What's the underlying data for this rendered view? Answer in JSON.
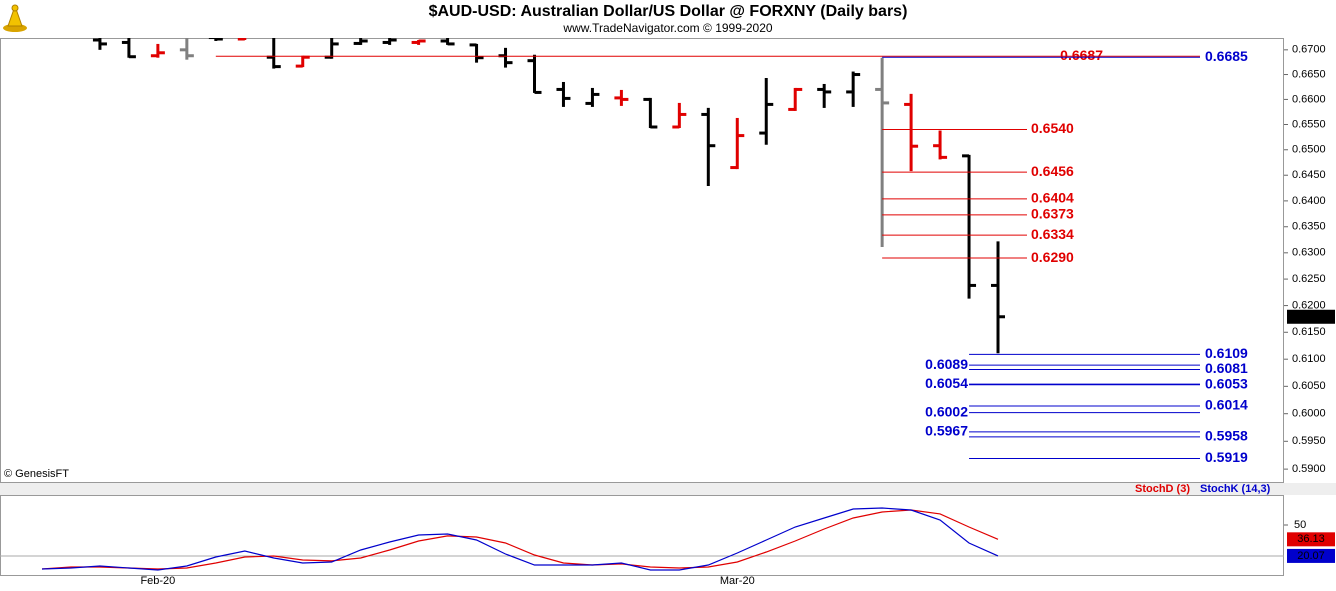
{
  "chart_data": [
    {
      "type": "ohlc",
      "title": "$AUD-USD:  Australian Dollar/US Dollar @ FORXNY  (Daily bars)",
      "subtitle": "www.TradeNavigator.com © 1999-2020",
      "source": "© GenesisFT",
      "categories": [
        null,
        null,
        null,
        null,
        "Feb-20",
        null,
        null,
        null,
        null,
        null,
        null,
        null,
        null,
        null,
        null,
        null,
        null,
        null,
        null,
        null,
        null,
        null,
        null,
        null,
        "Mar-20",
        null,
        null,
        null,
        null,
        null,
        null,
        null,
        null,
        null
      ],
      "open": [
        null,
        null,
        0.672,
        0.6715,
        0.6688,
        0.67,
        0.6725,
        0.6722,
        0.6685,
        0.6667,
        0.6685,
        0.6713,
        0.6715,
        0.6715,
        0.6718,
        0.671,
        0.6688,
        0.6678,
        0.662,
        0.6592,
        0.6603,
        0.66,
        0.6545,
        0.657,
        0.6465,
        0.6533,
        0.658,
        0.662,
        0.6615,
        0.662,
        0.659,
        0.6508,
        0.6488,
        0.6238
      ],
      "high": [
        null,
        null,
        0.6735,
        0.673,
        0.6712,
        0.6725,
        0.674,
        0.674,
        0.673,
        0.6688,
        0.6728,
        0.6728,
        0.673,
        0.672,
        0.6728,
        0.6712,
        0.6704,
        0.669,
        0.6635,
        0.6623,
        0.6619,
        0.6603,
        0.6593,
        0.6583,
        0.6563,
        0.6643,
        0.6623,
        0.6631,
        0.6656,
        0.6684,
        0.6611,
        0.6538,
        0.649,
        0.6322
      ],
      "low": [
        null,
        null,
        0.67,
        0.6684,
        0.6684,
        0.668,
        0.6718,
        0.672,
        0.6662,
        0.6665,
        0.6682,
        0.671,
        0.671,
        0.671,
        0.671,
        0.6674,
        0.6664,
        0.6613,
        0.6585,
        0.6585,
        0.6587,
        0.6543,
        0.6543,
        0.6429,
        0.6462,
        0.651,
        0.6577,
        0.6583,
        0.6585,
        0.6311,
        0.6458,
        0.6481,
        0.6213,
        0.6111
      ],
      "close": [
        null,
        null,
        0.6712,
        0.6686,
        0.6694,
        0.6688,
        0.6722,
        0.6728,
        0.6666,
        0.6685,
        0.6712,
        0.6718,
        0.672,
        0.6718,
        0.6712,
        0.6684,
        0.6674,
        0.6614,
        0.6602,
        0.661,
        0.66,
        0.6545,
        0.657,
        0.6508,
        0.6528,
        0.659,
        0.662,
        0.6615,
        0.665,
        0.6593,
        0.6507,
        0.6485,
        0.6238,
        0.6179
      ],
      "bar_colors": [
        null,
        null,
        "#000000",
        "#000000",
        "#e00000",
        "#808080",
        "#000000",
        "#e00000",
        "#000000",
        "#e00000",
        "#000000",
        "#000000",
        "#000000",
        "#e00000",
        "#000000",
        "#000000",
        "#000000",
        "#000000",
        "#000000",
        "#000000",
        "#e00000",
        "#000000",
        "#e00000",
        "#000000",
        "#e00000",
        "#000000",
        "#e00000",
        "#000000",
        "#000000",
        "#808080",
        "#e00000",
        "#e00000",
        "#000000",
        "#000000"
      ],
      "log_scale": true,
      "ylim": [
        0.5877,
        0.672
      ],
      "yticks": [
        {
          "value": 0.67,
          "label": "0.6700"
        },
        {
          "value": 0.665,
          "label": "0.6650"
        },
        {
          "value": 0.66,
          "label": "0.6600"
        },
        {
          "value": 0.655,
          "label": "0.6550"
        },
        {
          "value": 0.65,
          "label": "0.6500"
        },
        {
          "value": 0.645,
          "label": "0.6450"
        },
        {
          "value": 0.64,
          "label": "0.6400"
        },
        {
          "value": 0.635,
          "label": "0.6350"
        },
        {
          "value": 0.63,
          "label": "0.6300"
        },
        {
          "value": 0.625,
          "label": "0.6250"
        },
        {
          "value": 0.62,
          "label": "0.6200"
        },
        {
          "value": 0.615,
          "label": "0.6150"
        },
        {
          "value": 0.61,
          "label": "0.6100"
        },
        {
          "value": 0.605,
          "label": "0.6050"
        },
        {
          "value": 0.6,
          "label": "0.6000"
        },
        {
          "value": 0.595,
          "label": "0.5950"
        },
        {
          "value": 0.59,
          "label": "0.5900"
        }
      ],
      "levels": {
        "long_red": {
          "color": "#e00000",
          "values": [
            0.6687
          ],
          "value_labels": [
            "0.6687"
          ]
        },
        "top_blue": {
          "color": "#0000cc",
          "values": [
            0.6685
          ],
          "value_labels": [
            "0.6685"
          ]
        },
        "red": {
          "color": "#e00000",
          "values": [
            0.654,
            0.6456,
            0.6404,
            0.6373,
            0.6334,
            0.629
          ],
          "value_labels": [
            "0.6540",
            "0.6456",
            "0.6404",
            "0.6373",
            "0.6334",
            "0.6290"
          ]
        },
        "blue_right": {
          "color": "#0000cc",
          "values": [
            0.6109,
            0.6081,
            0.6053,
            0.6014,
            0.5958,
            0.5919
          ],
          "value_labels": [
            "0.6109",
            "0.6081",
            "0.6053",
            "0.6014",
            "0.5958",
            "0.5919"
          ]
        },
        "blue_left": {
          "color": "#0000cc",
          "values": [
            0.6089,
            0.6054,
            0.6002,
            0.5967
          ],
          "value_labels": [
            "0.6089",
            "0.6054",
            "0.6002",
            "0.5967"
          ]
        }
      }
    },
    {
      "type": "line",
      "series": [
        {
          "name": "StochD (3)",
          "color": "#e00000",
          "values": [
            7.4,
            9.3,
            9.3,
            8.4,
            7.4,
            8.4,
            13.2,
            19.0,
            20.0,
            16.1,
            15.2,
            18.1,
            25.8,
            34.5,
            39.4,
            38.4,
            32.6,
            21.0,
            13.2,
            11.3,
            12.3,
            9.3,
            8.4,
            9.3,
            14.2,
            23.9,
            34.5,
            46.1,
            56.8,
            62.6,
            64.5,
            60.7,
            48.1,
            36.13
          ]
        },
        {
          "name": "StochK (14,3)",
          "color": "#0000cc",
          "values": [
            7.4,
            8.4,
            10.3,
            8.4,
            6.4,
            10.3,
            19.0,
            24.8,
            18.1,
            13.2,
            14.2,
            25.8,
            33.5,
            40.3,
            41.3,
            35.5,
            21.9,
            11.3,
            11.3,
            11.3,
            13.2,
            6.4,
            6.4,
            11.3,
            22.9,
            35.5,
            48.1,
            56.8,
            65.5,
            66.5,
            64.5,
            54.8,
            32.6,
            20.07
          ]
        }
      ],
      "ylim": [
        1.6,
        77.1
      ],
      "yticks": [
        50
      ],
      "ref_line": 20
    }
  ]
}
